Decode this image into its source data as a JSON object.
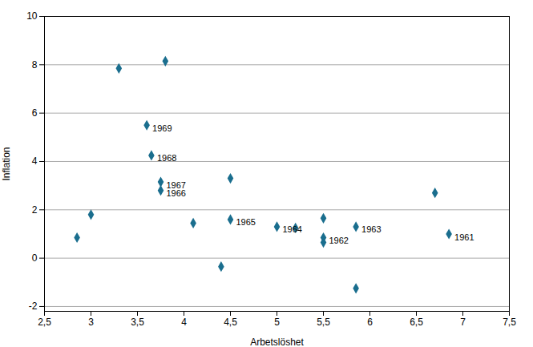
{
  "chart_data": {
    "type": "scatter",
    "x_label": "Arbetslöshet",
    "y_label": "Inflation",
    "x": [
      2.85,
      3.0,
      3.3,
      3.6,
      3.65,
      3.75,
      3.75,
      3.8,
      4.1,
      4.5,
      4.5,
      4.4,
      5.0,
      5.2,
      5.5,
      5.5,
      5.5,
      5.85,
      5.85,
      6.7,
      6.85
    ],
    "values": [
      0.85,
      1.8,
      7.85,
      5.5,
      4.25,
      3.15,
      2.8,
      8.15,
      1.45,
      3.3,
      1.6,
      -0.35,
      1.3,
      1.25,
      1.65,
      0.85,
      0.65,
      1.3,
      -1.25,
      2.7,
      1.0
    ],
    "labels": [
      null,
      null,
      null,
      "1969",
      "1968",
      "1967",
      "1966",
      null,
      null,
      null,
      "1965",
      null,
      "1964",
      null,
      null,
      "1962",
      null,
      "1963",
      null,
      null,
      "1961"
    ],
    "color": "#1a6e8e",
    "marker": "diamond",
    "xlim": [
      2.5,
      7.5
    ],
    "ylim": [
      -2.2,
      10
    ],
    "xticks": [
      {
        "value": 2.5,
        "label": "2,5"
      },
      3,
      {
        "value": 3.5,
        "label": "3,5"
      },
      4,
      {
        "value": 4.5,
        "label": "4,5"
      },
      5,
      {
        "value": 5.5,
        "label": "5,5"
      },
      6,
      {
        "value": 6.5,
        "label": "6,5"
      },
      7,
      {
        "value": 7.5,
        "label": "7,5"
      }
    ],
    "yticks": [
      -2,
      0,
      2,
      4,
      6,
      8,
      10
    ],
    "grid": "y"
  }
}
